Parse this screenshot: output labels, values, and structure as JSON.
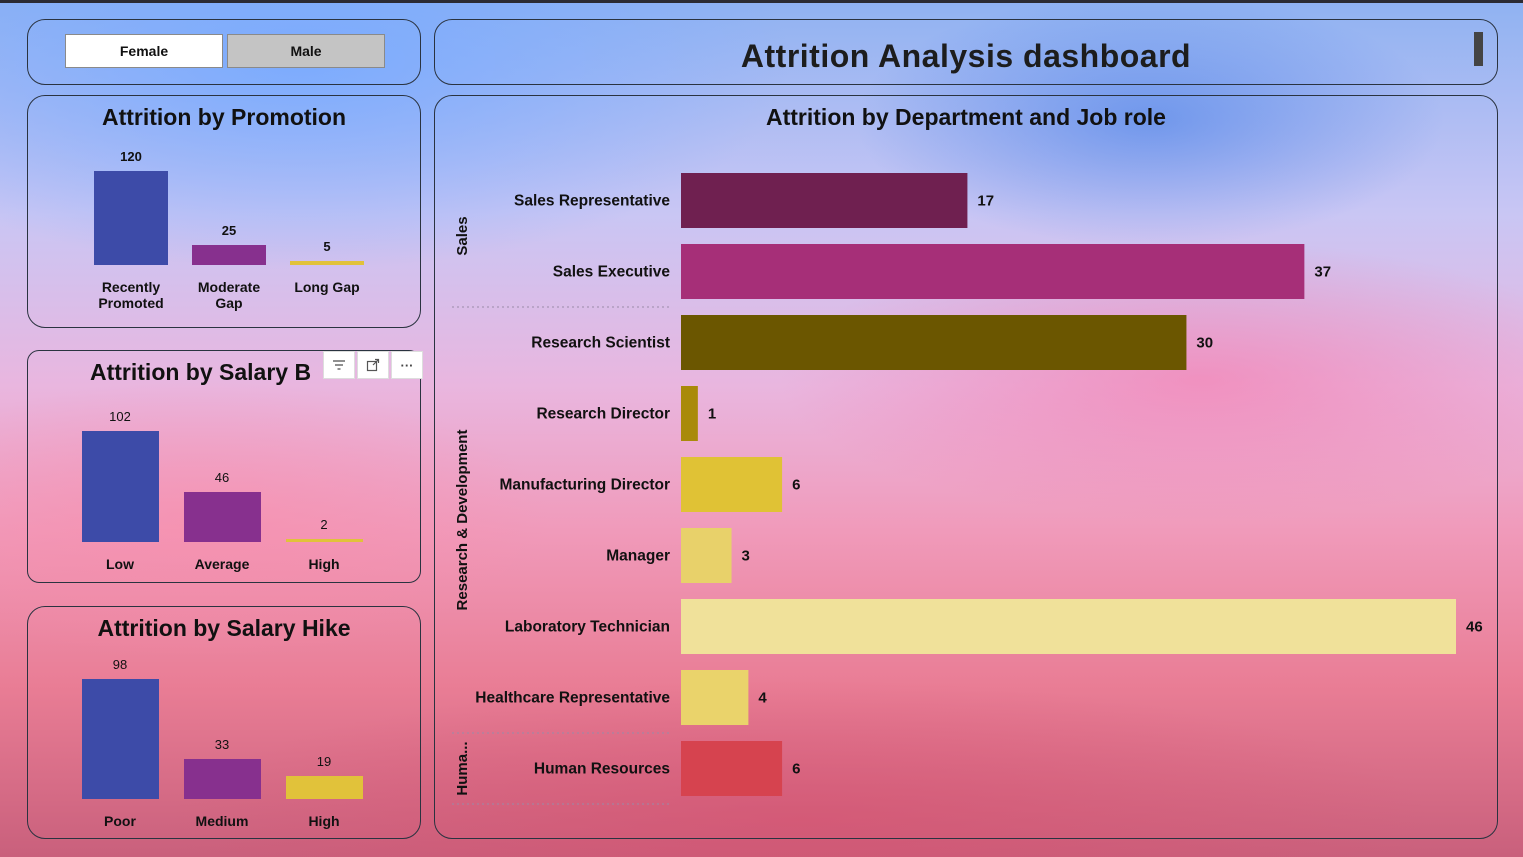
{
  "slicer": {
    "female_label": "Female",
    "male_label": "Male"
  },
  "header": {
    "title": "Attrition Analysis dashboard"
  },
  "promotion": {
    "title": "Attrition by Promotion",
    "chart_data": {
      "type": "bar",
      "categories": [
        "Recently Promoted",
        "Moderate Gap",
        "Long Gap"
      ],
      "category_lines": [
        [
          "Recently",
          "Promoted"
        ],
        [
          "Moderate",
          "Gap"
        ],
        [
          "Long Gap"
        ]
      ],
      "values": [
        120,
        25,
        5
      ],
      "colors": [
        "#3d4ba8",
        "#87308e",
        "#e1c23a"
      ]
    }
  },
  "salary_band": {
    "title": "Attrition by Salary Band",
    "visible_title": "Attrition by Salary B",
    "chart_data": {
      "type": "bar",
      "categories": [
        "Low",
        "Average",
        "High"
      ],
      "values": [
        102,
        46,
        2
      ],
      "colors": [
        "#3d4ba8",
        "#87308e",
        "#e1c23a"
      ]
    }
  },
  "salary_hike": {
    "title": "Attrition by Salary Hike",
    "chart_data": {
      "type": "bar",
      "categories": [
        "Poor",
        "Medium",
        "High"
      ],
      "values": [
        98,
        33,
        19
      ],
      "colors": [
        "#3d4ba8",
        "#87308e",
        "#e1c23a"
      ]
    }
  },
  "department": {
    "title": "Attrition by Department and Job role",
    "chart_data": {
      "type": "bar",
      "orientation": "horizontal",
      "groups": [
        {
          "name": "Sales",
          "roles": [
            "Sales Representative",
            "Sales Executive"
          ]
        },
        {
          "name": "Research & Development",
          "roles": [
            "Research Scientist",
            "Research Director",
            "Manufacturing Director",
            "Manager",
            "Laboratory Technician",
            "Healthcare Representative"
          ]
        },
        {
          "name": "Huma...",
          "roles": [
            "Human Resources"
          ]
        }
      ],
      "categories": [
        "Sales Representative",
        "Sales Executive",
        "Research Scientist",
        "Research Director",
        "Manufacturing Director",
        "Manager",
        "Laboratory Technician",
        "Healthcare Representative",
        "Human Resources"
      ],
      "values": [
        17,
        37,
        30,
        1,
        6,
        3,
        46,
        4,
        6
      ],
      "colors": [
        "#6f2050",
        "#a62f78",
        "#6b5600",
        "#a98a0a",
        "#e0c235",
        "#e8d16a",
        "#f0e19a",
        "#ead36b",
        "#d6434f"
      ]
    }
  },
  "toolbar": {
    "filter_icon": "filter-icon",
    "focus_icon": "focus-mode-icon",
    "more_label": "···"
  }
}
